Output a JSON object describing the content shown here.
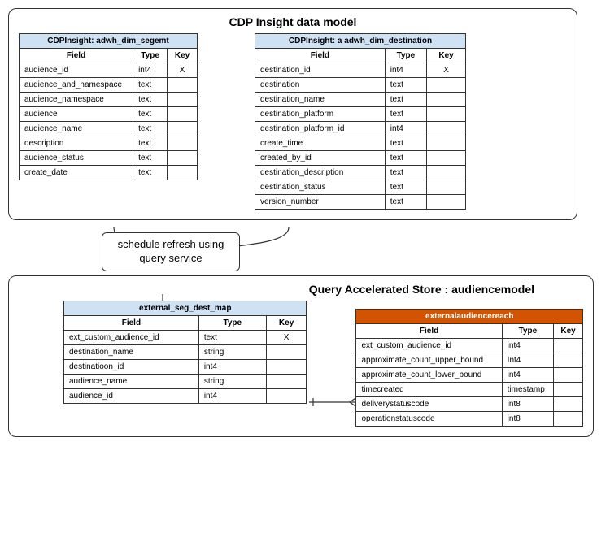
{
  "top_container": {
    "title": "CDP Insight data model"
  },
  "bottom_container": {
    "title": "Query Accelerated Store : audiencemodel"
  },
  "middle_label": "schedule refresh using query service",
  "tables": {
    "segment": {
      "title": "CDPInsight: adwh_dim_segemt",
      "header_color": "#cfe2f3",
      "columns": [
        "Field",
        "Type",
        "Key"
      ],
      "widths": {
        "field": 130,
        "type": 40,
        "key": 30
      },
      "rows": [
        [
          "audience_id",
          "int4",
          "X"
        ],
        [
          "audience_and_namespace",
          "text",
          ""
        ],
        [
          "audience_namespace",
          "text",
          ""
        ],
        [
          "audience",
          "text",
          ""
        ],
        [
          "audience_name",
          "text",
          ""
        ],
        [
          "description",
          "text",
          ""
        ],
        [
          "audience_status",
          "text",
          ""
        ],
        [
          "create_date",
          "text",
          ""
        ]
      ]
    },
    "destination": {
      "title": "CDPInsight: a adwh_dim_destination",
      "header_color": "#cfe2f3",
      "columns": [
        "Field",
        "Type",
        "Key"
      ],
      "widths": {
        "field": 140,
        "type": 45,
        "key": 42
      },
      "rows": [
        [
          "destination_id",
          "int4",
          "X"
        ],
        [
          "destination",
          "text",
          ""
        ],
        [
          "destination_name",
          "text",
          ""
        ],
        [
          "destination_platform",
          "text",
          ""
        ],
        [
          "destination_platform_id",
          "int4",
          ""
        ],
        [
          "create_time",
          "text",
          ""
        ],
        [
          "created_by_id",
          "text",
          ""
        ],
        [
          "destination_description",
          "text",
          ""
        ],
        [
          "destination_status",
          "text",
          ""
        ],
        [
          "version_number",
          "text",
          ""
        ]
      ]
    },
    "ext_map": {
      "title": "external_seg_dest_map",
      "header_color": "#cfe2f3",
      "columns": [
        "Field",
        "Type",
        "Key"
      ],
      "widths": {
        "field": 160,
        "type": 80,
        "key": 48
      },
      "rows": [
        [
          "ext_custom_audience_id",
          "text",
          "X"
        ],
        [
          "destination_name",
          "string",
          ""
        ],
        [
          "destinatioon_id",
          "int4",
          ""
        ],
        [
          "audience_name",
          "string",
          ""
        ],
        [
          "audience_id",
          "int4",
          ""
        ]
      ]
    },
    "reach": {
      "title": "externalaudiencereach",
      "header_color": "#d35400",
      "header_text_color": "#ffffff",
      "columns": [
        "Field",
        "Type",
        "Key"
      ],
      "widths": {
        "field": 175,
        "type": 62,
        "key": 30
      },
      "rows": [
        [
          "ext_custom_audience_id",
          "int4",
          ""
        ],
        [
          "approximate_count_upper_bound",
          "Int4",
          ""
        ],
        [
          "approximate_count_lower_bound",
          "int4",
          ""
        ],
        [
          "timecreated",
          "timestamp",
          ""
        ],
        [
          "deliverystatuscode",
          "int8",
          ""
        ],
        [
          "operationstatuscode",
          "int8",
          ""
        ]
      ]
    }
  },
  "colors": {
    "border": "#333333",
    "background": "#ffffff",
    "header_blue": "#cfe2f3",
    "header_orange": "#d35400"
  }
}
